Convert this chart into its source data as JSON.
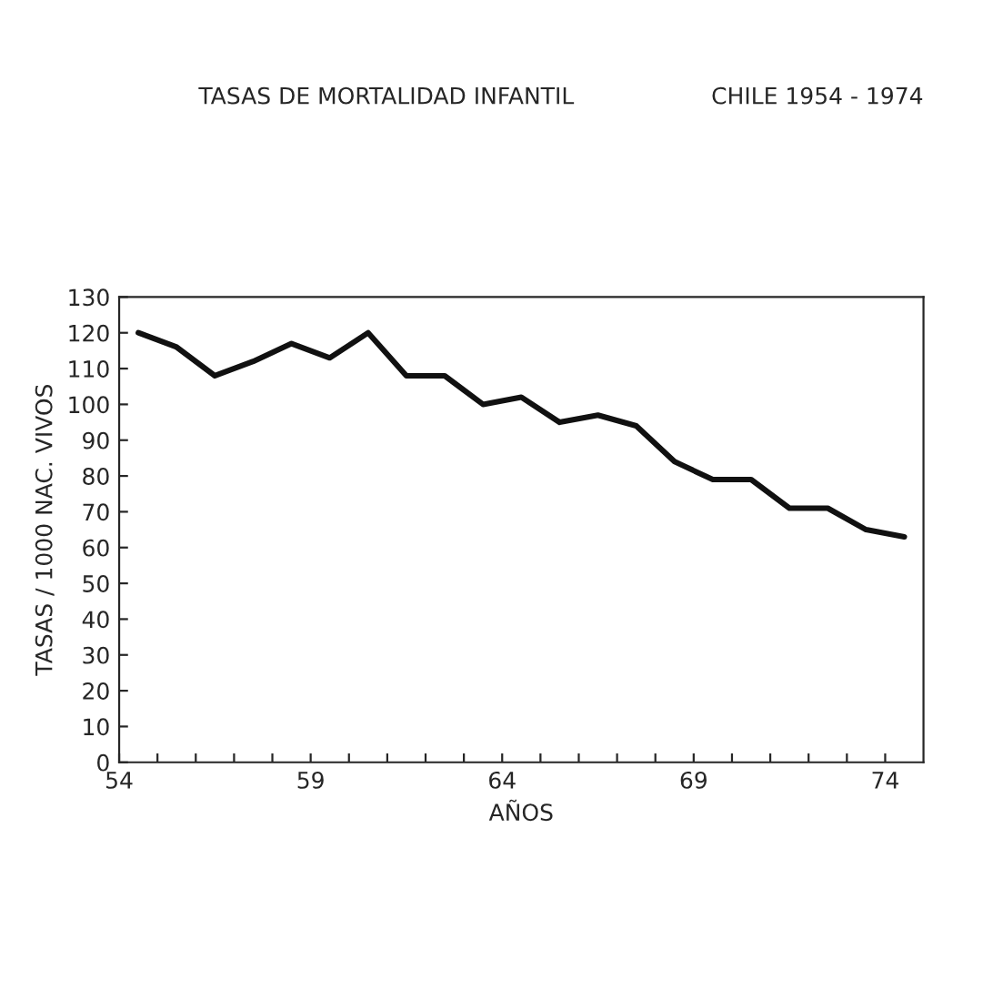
{
  "chart_data": {
    "type": "line",
    "title": "TASAS DE MORTALIDAD INFANTIL",
    "subtitle": "CHILE 1954 - 1974",
    "xlabel": "AÑOS",
    "ylabel": "TASAS / 1000 NAC. VIVOS",
    "x": [
      54.5,
      55.5,
      56.5,
      57.5,
      58.5,
      59.5,
      60.5,
      61.5,
      62.5,
      63.5,
      64.5,
      65.5,
      66.5,
      67.5,
      68.5,
      69.5,
      70.5,
      71.5,
      72.5,
      73.5,
      74.5
    ],
    "series": [
      {
        "color": "#111111",
        "values": [
          120,
          116,
          108,
          112,
          117,
          113,
          120,
          108,
          108,
          100,
          102,
          95,
          97,
          94,
          84,
          79,
          79,
          71,
          71,
          65,
          63
        ]
      }
    ],
    "xlim": [
      54,
      75
    ],
    "ylim": [
      0,
      130
    ],
    "xticks": [
      54,
      {
        "value": 55,
        "label": null
      },
      {
        "value": 56,
        "label": null
      },
      {
        "value": 57,
        "label": null
      },
      {
        "value": 58,
        "label": null
      },
      59,
      {
        "value": 60,
        "label": null
      },
      {
        "value": 61,
        "label": null
      },
      {
        "value": 62,
        "label": null
      },
      {
        "value": 63,
        "label": null
      },
      64,
      {
        "value": 65,
        "label": null
      },
      {
        "value": 66,
        "label": null
      },
      {
        "value": 67,
        "label": null
      },
      {
        "value": 68,
        "label": null
      },
      69,
      {
        "value": 70,
        "label": null
      },
      {
        "value": 71,
        "label": null
      },
      {
        "value": 72,
        "label": null
      },
      {
        "value": 73,
        "label": null
      },
      74
    ],
    "yticks": [
      0,
      10,
      20,
      30,
      40,
      50,
      60,
      70,
      80,
      90,
      100,
      110,
      120,
      130
    ],
    "grid": false,
    "legend": false,
    "marker": "none",
    "line_style": "solid"
  }
}
